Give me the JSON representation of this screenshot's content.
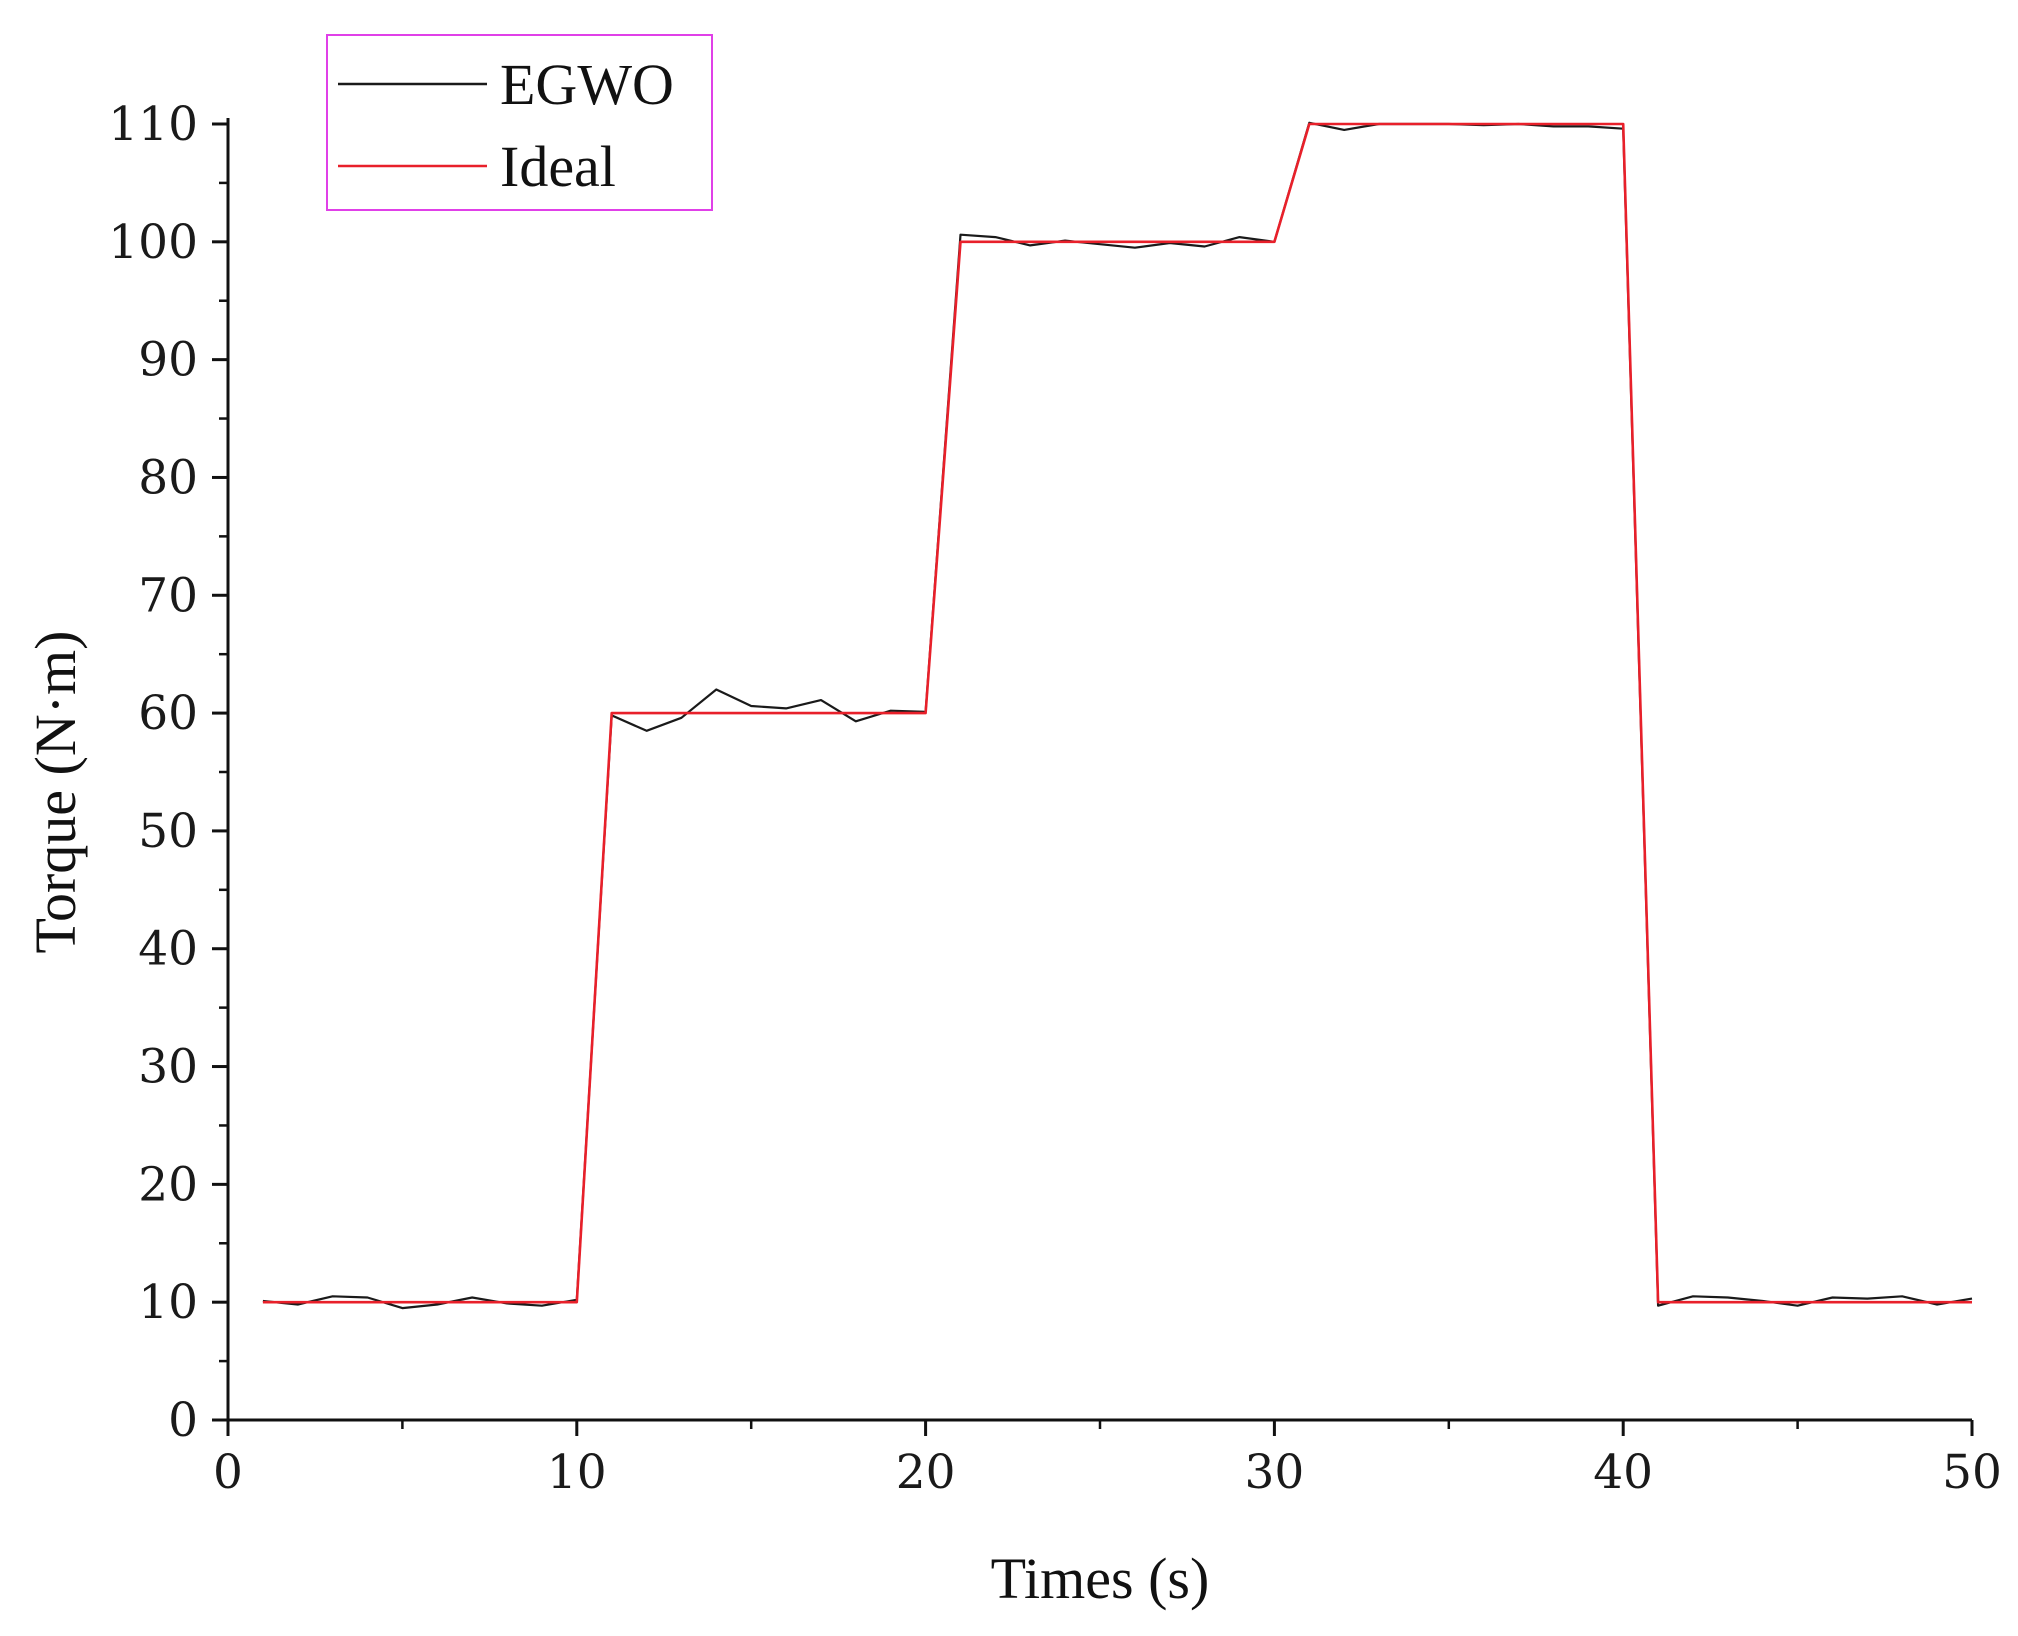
{
  "chart_data": {
    "type": "line",
    "title": "",
    "xlabel": "Times (s)",
    "ylabel": "Torque (N·m)",
    "xlim": [
      0,
      50
    ],
    "ylim": [
      0,
      110
    ],
    "x_ticks": [
      0,
      10,
      20,
      30,
      40,
      50
    ],
    "y_ticks": [
      0,
      10,
      20,
      30,
      40,
      50,
      60,
      70,
      80,
      90,
      100,
      110
    ],
    "grid": false,
    "legend": {
      "position": "top-left",
      "entries": [
        "EGWO",
        "Ideal"
      ]
    },
    "series": [
      {
        "name": "EGWO",
        "color": "#1a1a1a",
        "x": [
          1,
          2,
          3,
          4,
          5,
          6,
          7,
          8,
          9,
          10,
          11,
          12,
          13,
          14,
          15,
          16,
          17,
          18,
          19,
          20,
          21,
          22,
          23,
          24,
          25,
          26,
          27,
          28,
          29,
          30,
          31,
          32,
          33,
          34,
          35,
          36,
          37,
          38,
          39,
          40,
          41,
          42,
          43,
          44,
          45,
          46,
          47,
          48,
          49,
          50
        ],
        "y": [
          10.1,
          9.8,
          10.5,
          10.4,
          9.5,
          9.8,
          10.4,
          9.9,
          9.7,
          10.2,
          59.8,
          58.5,
          59.6,
          62.0,
          60.6,
          60.4,
          61.1,
          59.3,
          60.2,
          60.1,
          100.6,
          100.4,
          99.7,
          100.1,
          99.8,
          99.5,
          99.9,
          99.6,
          100.4,
          100.0,
          110.1,
          109.5,
          110.0,
          110.0,
          110.0,
          109.9,
          110.0,
          109.8,
          109.8,
          109.6,
          9.7,
          10.5,
          10.4,
          10.1,
          9.7,
          10.4,
          10.3,
          10.5,
          9.8,
          10.3
        ]
      },
      {
        "name": "Ideal",
        "color": "#e8202a",
        "x": [
          1,
          10,
          11,
          20,
          21,
          30,
          31,
          40,
          41,
          50
        ],
        "y": [
          10,
          10,
          60,
          60,
          100,
          100,
          110,
          110,
          10,
          10
        ]
      }
    ]
  }
}
